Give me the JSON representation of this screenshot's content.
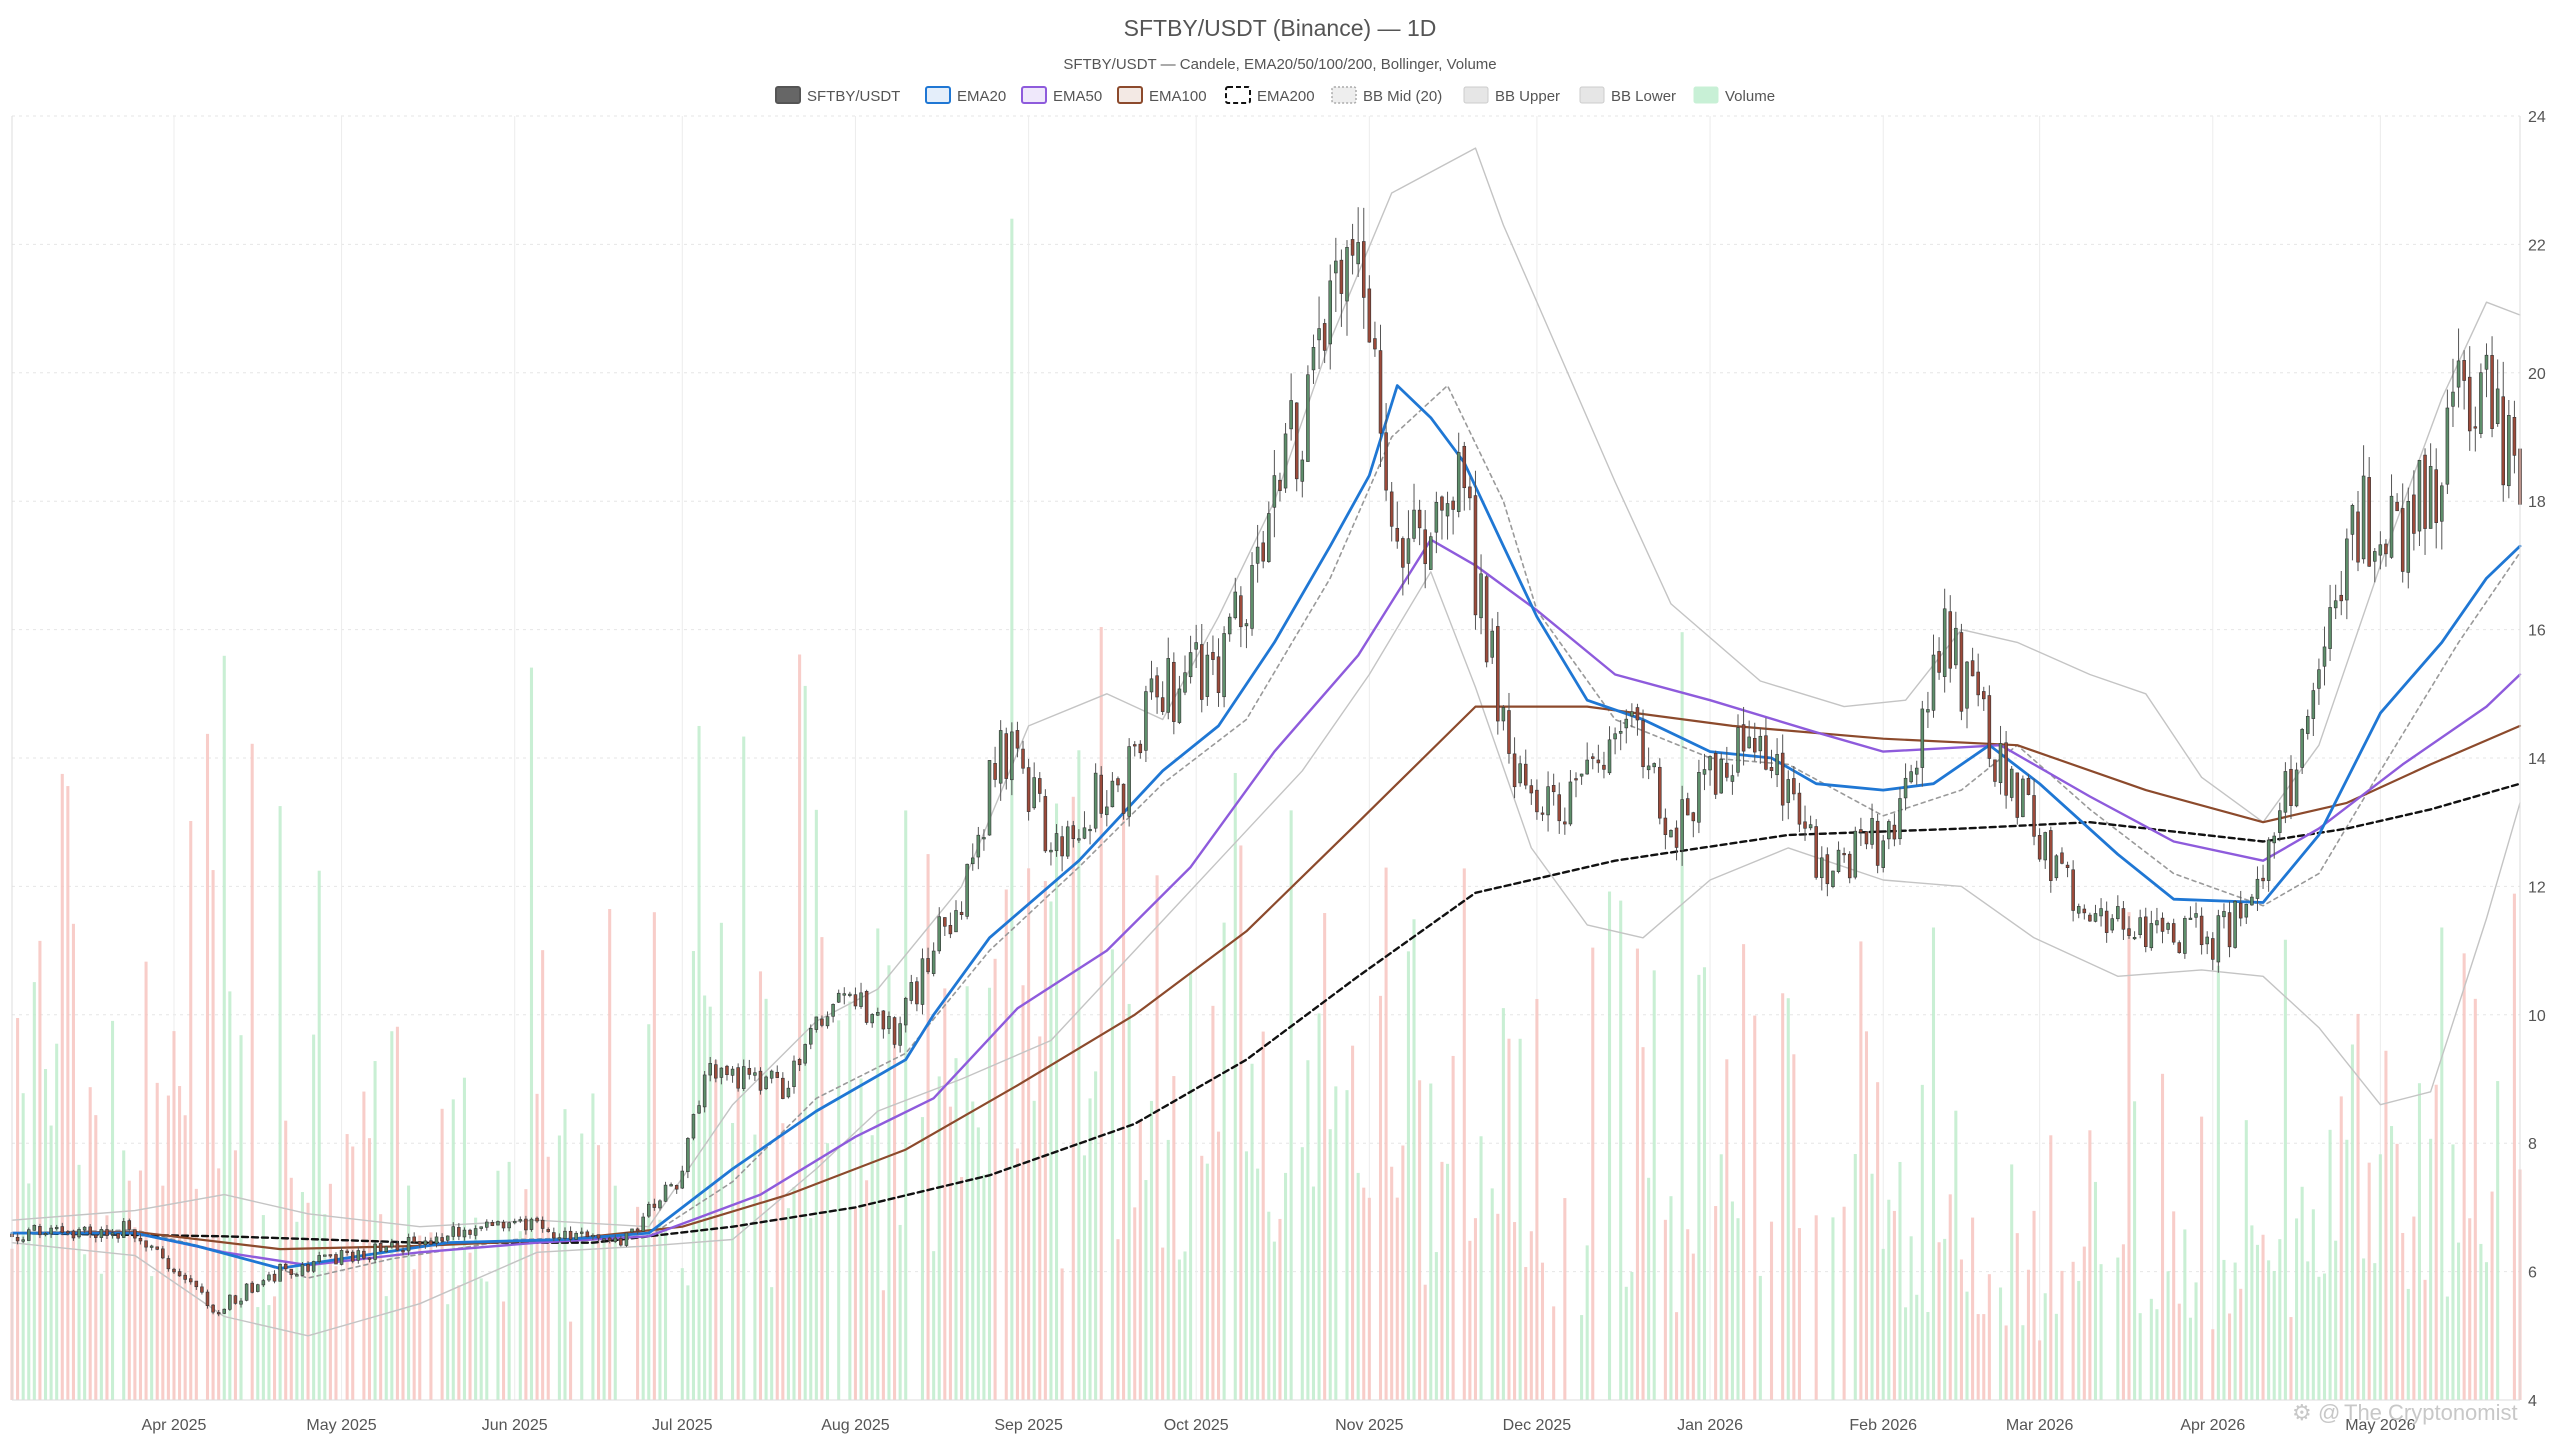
{
  "chart_data": {
    "type": "candlestick",
    "title": "SFTBY/USDT (Binance) — 1D",
    "subtitle": "SFTBY/USDT — Candele, EMA20/50/100/200, Bollinger, Volume",
    "watermark": "The Cryptonomist",
    "x_range": [
      "2025-03-03",
      "2026-05-26"
    ],
    "ylim": [
      4,
      24
    ],
    "y_ticks": [
      4,
      6,
      8,
      10,
      12,
      14,
      16,
      18,
      20,
      22,
      24
    ],
    "x_ticks": [
      {
        "date": "2025-04-01",
        "label": "Apr 2025"
      },
      {
        "date": "2025-05-01",
        "label": "May 2025"
      },
      {
        "date": "2025-06-01",
        "label": "Jun 2025"
      },
      {
        "date": "2025-07-01",
        "label": "Jul 2025"
      },
      {
        "date": "2025-08-01",
        "label": "Aug 2025"
      },
      {
        "date": "2025-09-01",
        "label": "Sep 2025"
      },
      {
        "date": "2025-10-01",
        "label": "Oct 2025"
      },
      {
        "date": "2025-11-01",
        "label": "Nov 2025"
      },
      {
        "date": "2025-12-01",
        "label": "Dec 2025"
      },
      {
        "date": "2026-01-01",
        "label": "Jan 2026"
      },
      {
        "date": "2026-02-01",
        "label": "Feb 2026"
      },
      {
        "date": "2026-03-01",
        "label": "Mar 2026"
      },
      {
        "date": "2026-04-01",
        "label": "Apr 2026"
      },
      {
        "date": "2026-05-01",
        "label": "May 2026"
      }
    ],
    "y_axis_side": "right",
    "grid": true,
    "legend_placement": "top-center",
    "legend": [
      {
        "key": "price",
        "label": "SFTBY/USDT",
        "color": "#666666",
        "style": "solid"
      },
      {
        "key": "ema20",
        "label": "EMA20",
        "color": "#1f77d4",
        "style": "solid"
      },
      {
        "key": "ema50",
        "label": "EMA50",
        "color": "#8e5bdc",
        "style": "solid"
      },
      {
        "key": "ema100",
        "label": "EMA100",
        "color": "#8c4a2c",
        "style": "solid"
      },
      {
        "key": "ema200",
        "label": "EMA200",
        "color": "#111111",
        "style": "dashed"
      },
      {
        "key": "bb_mid",
        "label": "BB Mid (20)",
        "color": "#9a9a9a",
        "style": "dotted"
      },
      {
        "key": "bb_upper",
        "label": "BB Upper",
        "color": "#bdbdbd",
        "style": "solid"
      },
      {
        "key": "bb_lower",
        "label": "BB Lower",
        "color": "#bdbdbd",
        "style": "solid"
      },
      {
        "key": "volume",
        "label": "Volume",
        "color": "#b8ecc9",
        "style": "bar"
      }
    ],
    "colors": {
      "up": "#5e8f6b",
      "down": "#9c4a3a",
      "volume_up": "#bfeccd",
      "volume_down": "#f7c4c0",
      "grid": "#e6e6e6"
    },
    "price_path": [
      [
        "2025-03-03",
        6.6
      ],
      [
        "2025-03-25",
        6.65
      ],
      [
        "2025-04-08",
        5.4
      ],
      [
        "2025-04-20",
        6.0
      ],
      [
        "2025-05-05",
        6.3
      ],
      [
        "2025-05-20",
        6.6
      ],
      [
        "2025-06-05",
        6.7
      ],
      [
        "2025-06-20",
        6.5
      ],
      [
        "2025-07-01",
        7.5
      ],
      [
        "2025-07-05",
        9.2
      ],
      [
        "2025-07-20",
        8.9
      ],
      [
        "2025-07-25",
        9.8
      ],
      [
        "2025-07-30",
        10.3
      ],
      [
        "2025-08-08",
        9.7
      ],
      [
        "2025-08-22",
        12.3
      ],
      [
        "2025-08-27",
        14.3
      ],
      [
        "2025-09-05",
        12.8
      ],
      [
        "2025-09-18",
        13.6
      ],
      [
        "2025-09-24",
        15.0
      ],
      [
        "2025-10-05",
        15.6
      ],
      [
        "2025-10-12",
        17.3
      ],
      [
        "2025-10-20",
        19.3
      ],
      [
        "2025-10-28",
        22.0
      ],
      [
        "2025-11-01",
        20.3
      ],
      [
        "2025-11-05",
        18.2
      ],
      [
        "2025-11-10",
        17.0
      ],
      [
        "2025-11-16",
        18.7
      ],
      [
        "2025-11-22",
        15.9
      ],
      [
        "2025-11-29",
        13.3
      ],
      [
        "2025-12-06",
        13.1
      ],
      [
        "2025-12-16",
        14.7
      ],
      [
        "2025-12-26",
        12.9
      ],
      [
        "2026-01-05",
        14.2
      ],
      [
        "2026-01-12",
        14.1
      ],
      [
        "2026-01-18",
        12.7
      ],
      [
        "2026-01-22",
        12.1
      ],
      [
        "2026-02-04",
        13.0
      ],
      [
        "2026-02-12",
        15.9
      ],
      [
        "2026-02-22",
        13.8
      ],
      [
        "2026-03-01",
        12.8
      ],
      [
        "2026-03-10",
        11.5
      ],
      [
        "2026-03-20",
        11.4
      ],
      [
        "2026-04-01",
        11.2
      ],
      [
        "2026-04-08",
        11.6
      ],
      [
        "2026-04-15",
        13.6
      ],
      [
        "2026-04-22",
        15.9
      ],
      [
        "2026-04-28",
        17.9
      ],
      [
        "2026-05-05",
        17.2
      ],
      [
        "2026-05-15",
        19.4
      ],
      [
        "2026-05-20",
        19.8
      ],
      [
        "2026-05-26",
        18.6
      ]
    ],
    "ema20": [
      [
        "2025-03-03",
        6.6
      ],
      [
        "2025-03-25",
        6.6
      ],
      [
        "2025-04-05",
        6.4
      ],
      [
        "2025-04-20",
        6.05
      ],
      [
        "2025-05-01",
        6.2
      ],
      [
        "2025-05-20",
        6.45
      ],
      [
        "2025-06-10",
        6.5
      ],
      [
        "2025-06-25",
        6.6
      ],
      [
        "2025-07-10",
        7.6
      ],
      [
        "2025-07-25",
        8.5
      ],
      [
        "2025-08-10",
        9.3
      ],
      [
        "2025-08-15",
        10.0
      ],
      [
        "2025-08-25",
        11.2
      ],
      [
        "2025-09-10",
        12.4
      ],
      [
        "2025-09-25",
        13.8
      ],
      [
        "2025-10-05",
        14.5
      ],
      [
        "2025-10-15",
        15.8
      ],
      [
        "2025-10-25",
        17.3
      ],
      [
        "2025-11-01",
        18.4
      ],
      [
        "2025-11-06",
        19.8
      ],
      [
        "2025-11-12",
        19.3
      ],
      [
        "2025-11-18",
        18.6
      ],
      [
        "2025-11-25",
        17.3
      ],
      [
        "2025-12-01",
        16.2
      ],
      [
        "2025-12-10",
        14.9
      ],
      [
        "2025-12-20",
        14.6
      ],
      [
        "2026-01-01",
        14.1
      ],
      [
        "2026-01-12",
        14.0
      ],
      [
        "2026-01-20",
        13.6
      ],
      [
        "2026-02-01",
        13.5
      ],
      [
        "2026-02-10",
        13.6
      ],
      [
        "2026-02-20",
        14.2
      ],
      [
        "2026-03-01",
        13.6
      ],
      [
        "2026-03-15",
        12.5
      ],
      [
        "2026-03-25",
        11.8
      ],
      [
        "2026-04-10",
        11.75
      ],
      [
        "2026-04-20",
        12.8
      ],
      [
        "2026-05-01",
        14.7
      ],
      [
        "2026-05-12",
        15.8
      ],
      [
        "2026-05-20",
        16.8
      ],
      [
        "2026-05-26",
        17.3
      ]
    ],
    "ema50": [
      [
        "2025-03-03",
        6.6
      ],
      [
        "2025-03-25",
        6.6
      ],
      [
        "2025-04-10",
        6.3
      ],
      [
        "2025-04-25",
        6.1
      ],
      [
        "2025-05-15",
        6.3
      ],
      [
        "2025-06-05",
        6.45
      ],
      [
        "2025-06-25",
        6.55
      ],
      [
        "2025-07-15",
        7.2
      ],
      [
        "2025-08-01",
        8.1
      ],
      [
        "2025-08-15",
        8.7
      ],
      [
        "2025-08-30",
        10.1
      ],
      [
        "2025-09-15",
        11.0
      ],
      [
        "2025-09-30",
        12.3
      ],
      [
        "2025-10-15",
        14.1
      ],
      [
        "2025-10-30",
        15.6
      ],
      [
        "2025-11-12",
        17.4
      ],
      [
        "2025-11-20",
        17.0
      ],
      [
        "2025-12-01",
        16.3
      ],
      [
        "2025-12-15",
        15.3
      ],
      [
        "2026-01-01",
        14.9
      ],
      [
        "2026-01-20",
        14.4
      ],
      [
        "2026-02-01",
        14.1
      ],
      [
        "2026-02-22",
        14.2
      ],
      [
        "2026-03-10",
        13.4
      ],
      [
        "2026-03-25",
        12.7
      ],
      [
        "2026-04-10",
        12.4
      ],
      [
        "2026-04-20",
        12.9
      ],
      [
        "2026-05-05",
        13.9
      ],
      [
        "2026-05-20",
        14.8
      ],
      [
        "2026-05-26",
        15.3
      ]
    ],
    "ema100": [
      [
        "2025-03-03",
        6.6
      ],
      [
        "2025-03-25",
        6.62
      ],
      [
        "2025-04-20",
        6.35
      ],
      [
        "2025-05-15",
        6.4
      ],
      [
        "2025-06-10",
        6.5
      ],
      [
        "2025-07-01",
        6.7
      ],
      [
        "2025-07-20",
        7.2
      ],
      [
        "2025-08-10",
        7.9
      ],
      [
        "2025-08-30",
        8.9
      ],
      [
        "2025-09-20",
        10.0
      ],
      [
        "2025-10-10",
        11.3
      ],
      [
        "2025-10-30",
        13.0
      ],
      [
        "2025-11-20",
        14.8
      ],
      [
        "2025-12-10",
        14.8
      ],
      [
        "2026-01-05",
        14.5
      ],
      [
        "2026-02-01",
        14.3
      ],
      [
        "2026-02-25",
        14.2
      ],
      [
        "2026-03-20",
        13.5
      ],
      [
        "2026-04-10",
        13.0
      ],
      [
        "2026-04-25",
        13.3
      ],
      [
        "2026-05-10",
        13.9
      ],
      [
        "2026-05-26",
        14.5
      ]
    ],
    "ema200": [
      [
        "2025-03-03",
        6.6
      ],
      [
        "2025-04-10",
        6.55
      ],
      [
        "2025-05-15",
        6.45
      ],
      [
        "2025-06-15",
        6.45
      ],
      [
        "2025-07-10",
        6.7
      ],
      [
        "2025-08-01",
        7.0
      ],
      [
        "2025-08-25",
        7.5
      ],
      [
        "2025-09-20",
        8.3
      ],
      [
        "2025-10-10",
        9.3
      ],
      [
        "2025-10-30",
        10.6
      ],
      [
        "2025-11-20",
        11.9
      ],
      [
        "2025-12-15",
        12.4
      ],
      [
        "2026-01-15",
        12.8
      ],
      [
        "2026-02-15",
        12.9
      ],
      [
        "2026-03-10",
        13.0
      ],
      [
        "2026-04-10",
        12.7
      ],
      [
        "2026-04-25",
        12.9
      ],
      [
        "2026-05-10",
        13.2
      ],
      [
        "2026-05-26",
        13.6
      ]
    ],
    "bb_mid": [
      [
        "2025-03-03",
        6.6
      ],
      [
        "2025-03-25",
        6.65
      ],
      [
        "2025-04-10",
        6.3
      ],
      [
        "2025-04-25",
        5.9
      ],
      [
        "2025-05-10",
        6.2
      ],
      [
        "2025-06-01",
        6.5
      ],
      [
        "2025-06-25",
        6.55
      ],
      [
        "2025-07-10",
        7.4
      ],
      [
        "2025-07-25",
        8.7
      ],
      [
        "2025-08-10",
        9.4
      ],
      [
        "2025-08-25",
        11.0
      ],
      [
        "2025-09-10",
        12.3
      ],
      [
        "2025-09-25",
        13.6
      ],
      [
        "2025-10-10",
        14.6
      ],
      [
        "2025-10-25",
        16.8
      ],
      [
        "2025-11-05",
        19.0
      ],
      [
        "2025-11-15",
        19.8
      ],
      [
        "2025-11-25",
        18.0
      ],
      [
        "2025-12-01",
        16.3
      ],
      [
        "2025-12-15",
        14.6
      ],
      [
        "2026-01-01",
        14.0
      ],
      [
        "2026-01-15",
        13.9
      ],
      [
        "2026-02-01",
        13.1
      ],
      [
        "2026-02-15",
        13.5
      ],
      [
        "2026-02-25",
        14.2
      ],
      [
        "2026-03-10",
        13.2
      ],
      [
        "2026-03-25",
        12.2
      ],
      [
        "2026-04-10",
        11.7
      ],
      [
        "2026-04-20",
        12.2
      ],
      [
        "2026-05-01",
        13.8
      ],
      [
        "2026-05-15",
        15.8
      ],
      [
        "2026-05-26",
        17.2
      ]
    ],
    "bb_upper": [
      [
        "2025-03-03",
        6.8
      ],
      [
        "2025-03-25",
        6.95
      ],
      [
        "2025-04-10",
        7.2
      ],
      [
        "2025-04-25",
        6.9
      ],
      [
        "2025-05-15",
        6.7
      ],
      [
        "2025-06-05",
        6.8
      ],
      [
        "2025-06-25",
        6.7
      ],
      [
        "2025-07-10",
        8.6
      ],
      [
        "2025-07-25",
        9.9
      ],
      [
        "2025-08-05",
        10.4
      ],
      [
        "2025-08-20",
        12.0
      ],
      [
        "2025-09-01",
        14.5
      ],
      [
        "2025-09-15",
        15.0
      ],
      [
        "2025-09-25",
        14.6
      ],
      [
        "2025-10-05",
        16.2
      ],
      [
        "2025-10-15",
        18.0
      ],
      [
        "2025-10-25",
        20.5
      ],
      [
        "2025-11-05",
        22.8
      ],
      [
        "2025-11-20",
        23.5
      ],
      [
        "2025-11-25",
        22.3
      ],
      [
        "2025-12-05",
        20.3
      ],
      [
        "2025-12-15",
        18.3
      ],
      [
        "2025-12-25",
        16.4
      ],
      [
        "2026-01-10",
        15.2
      ],
      [
        "2026-01-25",
        14.8
      ],
      [
        "2026-02-05",
        14.9
      ],
      [
        "2026-02-15",
        16.0
      ],
      [
        "2026-02-25",
        15.8
      ],
      [
        "2026-03-10",
        15.3
      ],
      [
        "2026-03-20",
        15.0
      ],
      [
        "2026-03-30",
        13.7
      ],
      [
        "2026-04-10",
        13.0
      ],
      [
        "2026-04-20",
        14.2
      ],
      [
        "2026-05-01",
        17.0
      ],
      [
        "2026-05-12",
        19.6
      ],
      [
        "2026-05-20",
        21.1
      ],
      [
        "2026-05-26",
        20.9
      ]
    ],
    "bb_lower": [
      [
        "2025-03-03",
        6.45
      ],
      [
        "2025-03-25",
        6.25
      ],
      [
        "2025-04-10",
        5.3
      ],
      [
        "2025-04-25",
        5.0
      ],
      [
        "2025-05-15",
        5.5
      ],
      [
        "2025-06-05",
        6.3
      ],
      [
        "2025-06-25",
        6.4
      ],
      [
        "2025-07-10",
        6.5
      ],
      [
        "2025-07-25",
        7.6
      ],
      [
        "2025-08-05",
        8.5
      ],
      [
        "2025-08-20",
        9.0
      ],
      [
        "2025-09-05",
        9.6
      ],
      [
        "2025-09-20",
        11.0
      ],
      [
        "2025-10-05",
        12.4
      ],
      [
        "2025-10-20",
        13.8
      ],
      [
        "2025-11-01",
        15.3
      ],
      [
        "2025-11-12",
        16.9
      ],
      [
        "2025-11-20",
        15.1
      ],
      [
        "2025-11-30",
        12.6
      ],
      [
        "2025-12-10",
        11.4
      ],
      [
        "2025-12-20",
        11.2
      ],
      [
        "2026-01-01",
        12.1
      ],
      [
        "2026-01-15",
        12.6
      ],
      [
        "2026-02-01",
        12.1
      ],
      [
        "2026-02-15",
        12.0
      ],
      [
        "2026-02-28",
        11.2
      ],
      [
        "2026-03-15",
        10.6
      ],
      [
        "2026-03-30",
        10.7
      ],
      [
        "2026-04-10",
        10.6
      ],
      [
        "2026-04-20",
        9.8
      ],
      [
        "2026-05-01",
        8.6
      ],
      [
        "2026-05-10",
        8.8
      ],
      [
        "2026-05-20",
        11.5
      ],
      [
        "2026-05-26",
        13.3
      ]
    ],
    "volume_envelope": [
      [
        "2025-03-03",
        0.45
      ],
      [
        "2025-04-01",
        0.5
      ],
      [
        "2025-05-01",
        0.38
      ],
      [
        "2025-06-01",
        0.3
      ],
      [
        "2025-07-01",
        0.45
      ],
      [
        "2025-08-01",
        0.55
      ],
      [
        "2025-09-01",
        0.6
      ],
      [
        "2025-10-01",
        0.45
      ],
      [
        "2025-11-01",
        0.45
      ],
      [
        "2025-12-01",
        0.4
      ],
      [
        "2026-01-01",
        0.35
      ],
      [
        "2026-02-01",
        0.38
      ],
      [
        "2026-03-01",
        0.32
      ],
      [
        "2026-04-01",
        0.3
      ],
      [
        "2026-05-01",
        0.35
      ],
      [
        "2026-05-26",
        0.3
      ]
    ],
    "volume_spikes": [
      [
        "2025-03-12",
        0.53
      ],
      [
        "2025-04-10",
        0.63
      ],
      [
        "2025-06-04",
        0.62
      ],
      [
        "2025-06-30",
        0.48
      ],
      [
        "2025-08-29",
        1.0
      ],
      [
        "2025-09-10",
        0.55
      ],
      [
        "2025-11-18",
        0.45
      ],
      [
        "2025-12-27",
        0.65
      ],
      [
        "2026-02-10",
        0.4
      ],
      [
        "2026-05-12",
        0.4
      ],
      [
        "2026-05-22",
        0.27
      ]
    ]
  }
}
